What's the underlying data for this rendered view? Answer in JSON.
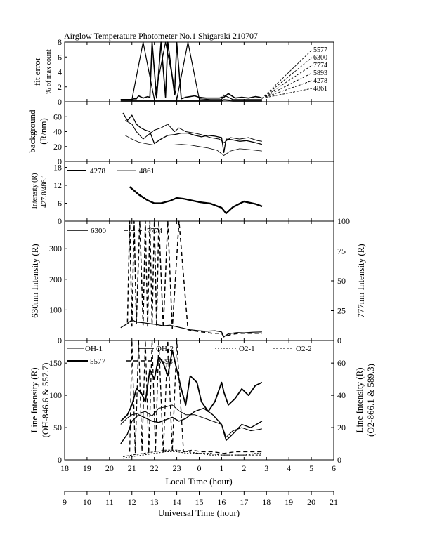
{
  "title": "Airglow Temperature Photometer No.1  Shigaraki  210707",
  "axes": {
    "local_time_label": "Local Time (hour)",
    "universal_time_label": "Universal Time (hour)",
    "local_time_ticks": [
      "18",
      "19",
      "20",
      "21",
      "22",
      "23",
      "0",
      "1",
      "2",
      "3",
      "4",
      "5",
      "6"
    ],
    "universal_time_ticks": [
      "9",
      "10",
      "11",
      "12",
      "13",
      "14",
      "15",
      "16",
      "17",
      "18",
      "19",
      "20",
      "21"
    ]
  },
  "panels": {
    "fit": {
      "ylabel_line1": "fit error",
      "ylabel_line2": "% of max count",
      "yticks": [
        "0",
        "2",
        "4",
        "6",
        "8"
      ],
      "wavelengths": [
        "5577",
        "6300",
        "7774",
        "5893",
        "4278",
        "4861"
      ]
    },
    "bg": {
      "ylabel_line1": "background",
      "ylabel_line2": "(R/nm)",
      "yticks": [
        "0",
        "20",
        "40",
        "60"
      ]
    },
    "blue": {
      "ylabel_line1": "Intensity (R)",
      "ylabel_line2": "427.8/486.1",
      "yticks": [
        "0",
        "6",
        "12",
        "18"
      ],
      "legend": [
        "4278",
        "4861"
      ]
    },
    "red": {
      "ylabel_left": "630nm Intensity (R)",
      "ylabel_right": "777nm Intensity (R)",
      "yticks_left": [
        "0",
        "100",
        "200",
        "300"
      ],
      "yticks_right": [
        "0",
        "25",
        "50",
        "75",
        "100"
      ],
      "legend": [
        "6300",
        "7774"
      ]
    },
    "line": {
      "ylabel_left_1": "Line Intensity (R)",
      "ylabel_left_2": "(OH-846.6 & 557.7)",
      "ylabel_right_1": "Line Intensity (R)",
      "ylabel_right_2": "(O2-866.1 & 589.3)",
      "yticks_left": [
        "0",
        "50",
        "100",
        "150"
      ],
      "yticks_right": [
        "0",
        "20",
        "40",
        "60"
      ],
      "legend": [
        "OH-1",
        "OH-2",
        "O2-1",
        "O2-2",
        "5577",
        "5893"
      ]
    }
  },
  "chart_data": [
    {
      "type": "line",
      "title": "Airglow Temperature Photometer No.1  Shigaraki  210707",
      "xlabel": "",
      "ylabel": "fit error % of max count",
      "xlim": [
        18,
        30
      ],
      "ylim": [
        0,
        8
      ],
      "series": [
        {
          "name": "5577",
          "x": [
            20.5,
            20.8,
            21.0,
            21.1,
            21.2,
            21.3,
            21.5,
            21.7,
            21.8,
            21.9,
            22.1,
            22.3,
            22.5,
            22.6,
            22.9,
            23.0,
            23.2,
            23.4,
            23.6,
            23.8,
            24.0,
            24.3,
            24.6,
            24.9,
            25.0,
            25.1,
            25.3,
            25.6,
            25.9,
            26.2,
            26.5,
            26.7,
            26.8
          ],
          "y": [
            0.3,
            0.3,
            0.3,
            0.4,
            0.4,
            0.8,
            0.5,
            0.7,
            0.6,
            8.0,
            0.5,
            8.0,
            0.6,
            8.0,
            1.0,
            7.9,
            0.4,
            0.6,
            0.7,
            0.8,
            0.6,
            0.5,
            0.5,
            0.5,
            0.6,
            0.6,
            1.1,
            0.5,
            0.6,
            0.5,
            0.7,
            0.6,
            0.5
          ]
        },
        {
          "name": "6300",
          "x": [
            20.5,
            21.0,
            21.5,
            22.0,
            22.5,
            23.0,
            23.5,
            24.0,
            24.5,
            25.0,
            25.1,
            25.5,
            26.0,
            26.5,
            26.8
          ],
          "y": [
            0.3,
            0.3,
            8.0,
            0.3,
            8.0,
            0.3,
            8.0,
            0.4,
            0.3,
            0.3,
            0.9,
            0.3,
            0.3,
            0.3,
            0.3
          ]
        },
        {
          "name": "7774",
          "x": [
            20.5,
            21.0,
            21.5,
            22.0,
            22.5,
            23.0,
            23.5,
            24.0,
            24.5,
            25.0,
            25.1,
            25.5,
            26.0,
            26.5,
            26.8
          ],
          "y": [
            0.2,
            0.2,
            0.2,
            0.2,
            0.2,
            0.2,
            0.2,
            0.2,
            0.2,
            0.2,
            0.3,
            0.2,
            0.2,
            0.2,
            0.2
          ]
        },
        {
          "name": "5893",
          "x": [
            20.5,
            21.0,
            21.5,
            22.0,
            22.5,
            23.0,
            23.5,
            24.0,
            24.5,
            25.0,
            25.1,
            25.5,
            26.0,
            26.5,
            26.8
          ],
          "y": [
            0.1,
            0.1,
            0.1,
            0.1,
            0.1,
            0.1,
            0.1,
            0.1,
            0.1,
            0.1,
            0.2,
            0.1,
            0.1,
            0.1,
            0.1
          ]
        },
        {
          "name": "4278",
          "x": [
            20.5,
            21.0,
            21.5,
            22.0,
            22.5,
            23.0,
            23.5,
            24.0,
            24.5,
            25.0,
            25.5,
            26.0,
            26.5,
            26.8
          ],
          "y": [
            0.0,
            0.0,
            0.0,
            0.0,
            0.0,
            0.0,
            0.0,
            0.0,
            0.0,
            0.0,
            0.0,
            0.0,
            0.0,
            0.0
          ]
        },
        {
          "name": "4861",
          "x": [
            20.5,
            21.0,
            21.5,
            22.0,
            22.5,
            23.0,
            23.5,
            24.0,
            24.5,
            25.0,
            25.5,
            26.0,
            26.5,
            26.8
          ],
          "y": [
            0.0,
            0.0,
            0.0,
            0.0,
            0.0,
            0.0,
            0.0,
            0.0,
            0.0,
            0.0,
            0.0,
            0.0,
            0.0,
            0.0
          ]
        }
      ]
    },
    {
      "type": "line",
      "xlabel": "",
      "ylabel": "background (R/nm)",
      "xlim": [
        18,
        30
      ],
      "ylim": [
        0,
        80
      ],
      "series": [
        {
          "x": [
            20.7,
            21.0,
            21.2,
            21.5,
            21.7,
            22.0,
            22.3,
            22.6,
            22.9,
            23.1,
            23.4,
            23.8,
            24.1,
            24.5,
            24.9,
            25.1,
            25.4,
            25.8,
            26.2,
            26.6,
            26.8
          ],
          "y": [
            55,
            50,
            40,
            30,
            35,
            42,
            45,
            50,
            40,
            45,
            40,
            38,
            36,
            32,
            30,
            25,
            32,
            30,
            32,
            28,
            27
          ]
        },
        {
          "x": [
            20.6,
            20.8,
            21.0,
            21.2,
            21.4,
            21.6,
            21.8,
            22.0,
            22.3,
            22.6,
            22.9,
            23.2,
            23.5,
            23.8,
            24.1,
            24.4,
            24.7,
            25.0,
            25.1,
            25.2,
            25.5,
            25.8,
            26.1,
            26.4,
            26.8
          ],
          "y": [
            65,
            55,
            62,
            50,
            45,
            42,
            40,
            24,
            30,
            35,
            36,
            38,
            38,
            35,
            33,
            35,
            34,
            32,
            12,
            30,
            29,
            27,
            28,
            26,
            23
          ]
        },
        {
          "x": [
            20.7,
            21.0,
            21.3,
            21.6,
            22.0,
            22.4,
            22.8,
            23.2,
            23.6,
            24.0,
            24.4,
            24.8,
            25.1,
            25.4,
            25.8,
            26.2,
            26.8
          ],
          "y": [
            35,
            30,
            26,
            24,
            22,
            22,
            22,
            23,
            22,
            20,
            18,
            15,
            8,
            14,
            17,
            16,
            14
          ]
        }
      ]
    },
    {
      "type": "line",
      "xlabel": "",
      "ylabel": "Intensity (R) 427.8/486.1",
      "xlim": [
        18,
        30
      ],
      "ylim": [
        0,
        20
      ],
      "series": [
        {
          "name": "4278",
          "x": [
            20.9,
            21.3,
            21.7,
            22.0,
            22.3,
            22.7,
            23.0,
            23.3,
            23.7,
            24.0,
            24.5,
            25.0,
            25.2,
            25.5,
            26.0,
            26.5,
            26.8
          ],
          "y": [
            11.5,
            9.0,
            7.0,
            6.0,
            6.0,
            6.8,
            7.8,
            7.5,
            6.9,
            6.4,
            5.9,
            4.5,
            2.6,
            4.7,
            6.6,
            5.8,
            5.0
          ]
        },
        {
          "name": "4861",
          "x": [
            20.9,
            21.3,
            21.7,
            22.0,
            22.3,
            22.7,
            23.0,
            23.3,
            23.7,
            24.0,
            24.5,
            25.0,
            25.2,
            25.5,
            26.0,
            26.5,
            26.8
          ],
          "y": [
            11.3,
            8.7,
            6.8,
            5.8,
            5.9,
            6.7,
            7.6,
            7.4,
            6.7,
            6.2,
            5.7,
            4.3,
            2.4,
            4.5,
            6.4,
            5.6,
            4.8
          ]
        }
      ]
    },
    {
      "type": "line",
      "xlabel": "",
      "ylabel": "630nm Intensity (R)",
      "y2label": "777nm Intensity (R)",
      "xlim": [
        18,
        30
      ],
      "ylim": [
        0,
        390
      ],
      "y2lim": [
        0,
        100
      ],
      "series": [
        {
          "name": "6300",
          "axis": "left",
          "x": [
            20.5,
            20.8,
            21.0,
            21.2,
            21.5,
            21.8,
            22.1,
            22.4,
            22.7,
            23.0,
            23.3,
            23.6,
            24.0,
            24.3,
            24.7,
            25.0,
            25.1,
            25.3,
            25.7,
            26.0,
            26.4,
            26.8
          ],
          "y": [
            42,
            55,
            68,
            60,
            58,
            55,
            52,
            48,
            50,
            45,
            40,
            35,
            32,
            30,
            32,
            28,
            12,
            22,
            26,
            25,
            27,
            28
          ]
        },
        {
          "name": "7774",
          "axis": "right",
          "x": [
            20.8,
            20.9,
            21.0,
            21.1,
            21.2,
            21.35,
            21.5,
            21.6,
            21.7,
            21.8,
            21.9,
            22.0,
            22.1,
            22.2,
            22.4,
            22.6,
            22.8,
            23.1,
            23.5,
            23.8,
            24.2,
            24.6,
            25.0,
            25.1,
            25.4,
            25.8,
            26.2,
            26.6,
            26.8
          ],
          "y": [
            15,
            100,
            12,
            100,
            14,
            100,
            13,
            100,
            12,
            100,
            13,
            100,
            12,
            100,
            11,
            100,
            10,
            100,
            9,
            8,
            7,
            6,
            6,
            3,
            5,
            6,
            6,
            6,
            6
          ]
        }
      ]
    },
    {
      "type": "line",
      "xlabel": "Local Time (hour)",
      "ylabel": "Line Intensity (R) (OH-846.6 & 557.7)",
      "y2label": "Line Intensity (R) (O2-866.1 & 589.3)",
      "xlim": [
        18,
        30
      ],
      "ylim": [
        0,
        185
      ],
      "y2lim": [
        0,
        74
      ],
      "series": [
        {
          "name": "OH-1",
          "axis": "left",
          "x": [
            20.5,
            20.8,
            21.0,
            21.3,
            21.6,
            21.9,
            22.2,
            22.5,
            22.8,
            23.1,
            23.4,
            23.8,
            24.2,
            24.6,
            25.0,
            25.2,
            25.5,
            25.9,
            26.3,
            26.8
          ],
          "y": [
            55,
            65,
            70,
            72,
            75,
            68,
            80,
            82,
            85,
            76,
            70,
            70,
            65,
            60,
            55,
            35,
            45,
            50,
            45,
            48
          ]
        },
        {
          "name": "OH-2",
          "axis": "left",
          "x": [
            20.5,
            20.8,
            21.0,
            21.3,
            21.6,
            21.9,
            22.2,
            22.5,
            22.8,
            23.1,
            23.4,
            23.8,
            24.2,
            24.6,
            25.0,
            25.2,
            25.5,
            25.9,
            26.3,
            26.8
          ],
          "y": [
            25,
            40,
            60,
            70,
            65,
            60,
            58,
            62,
            66,
            60,
            64,
            75,
            80,
            70,
            55,
            30,
            40,
            55,
            50,
            60
          ]
        },
        {
          "name": "5577",
          "axis": "left",
          "x": [
            20.5,
            20.8,
            21.0,
            21.2,
            21.4,
            21.6,
            21.8,
            22.0,
            22.2,
            22.4,
            22.6,
            22.8,
            23.0,
            23.2,
            23.4,
            23.6,
            23.9,
            24.1,
            24.4,
            24.7,
            25.0,
            25.1,
            25.3,
            25.6,
            25.9,
            26.2,
            26.5,
            26.8
          ],
          "y": [
            60,
            70,
            85,
            110,
            105,
            90,
            140,
            125,
            160,
            150,
            130,
            170,
            140,
            110,
            85,
            130,
            120,
            90,
            75,
            90,
            120,
            105,
            85,
            95,
            110,
            100,
            115,
            120
          ]
        },
        {
          "name": "5893",
          "axis": "right",
          "x": [
            20.9,
            21.0,
            21.15,
            21.3,
            21.45,
            21.6,
            21.75,
            21.9,
            22.05,
            22.2,
            22.4,
            22.6,
            22.8,
            23.0,
            23.3,
            23.7,
            24.1,
            24.6,
            25.1,
            25.6,
            26.1,
            26.8
          ],
          "y": [
            5,
            74,
            4,
            74,
            5,
            74,
            4,
            74,
            5,
            74,
            4,
            74,
            5,
            74,
            5,
            6,
            5,
            5,
            4,
            5,
            5,
            5
          ]
        },
        {
          "name": "O2-1",
          "axis": "right",
          "x": [
            20.6,
            21.0,
            21.5,
            22.0,
            22.5,
            23.0,
            23.5,
            24.0,
            24.5,
            25.0,
            25.5,
            26.0,
            26.5,
            26.8
          ],
          "y": [
            1,
            2,
            3,
            4,
            5,
            5,
            4,
            4,
            3,
            3,
            3,
            3,
            4,
            4
          ]
        },
        {
          "name": "O2-2",
          "axis": "right",
          "x": [
            20.6,
            21.0,
            21.5,
            22.0,
            22.5,
            23.0,
            23.5,
            24.0,
            24.5,
            25.0,
            25.5,
            26.0,
            26.5,
            26.8
          ],
          "y": [
            2,
            3,
            4,
            5,
            6,
            6,
            5,
            4,
            4,
            3,
            3,
            3,
            3,
            3
          ]
        }
      ]
    }
  ]
}
